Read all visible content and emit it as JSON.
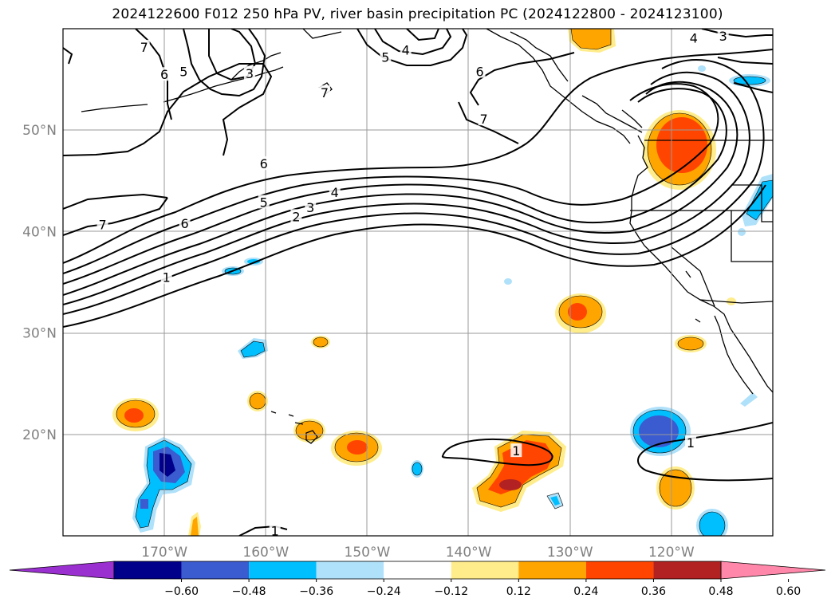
{
  "title": "2024122600 F012 250 hPa PV, river basin precipitation PC (2024122800 - 2024123100)",
  "map": {
    "lon_range": [
      -180,
      -110
    ],
    "lat_range": [
      10,
      60
    ],
    "lat_ticks": [
      {
        "value": 50,
        "label": "50°N"
      },
      {
        "value": 40,
        "label": "40°N"
      },
      {
        "value": 30,
        "label": "30°N"
      },
      {
        "value": 20,
        "label": "20°N"
      }
    ],
    "lon_ticks": [
      {
        "value": -170,
        "label": "170°W"
      },
      {
        "value": -160,
        "label": "160°W"
      },
      {
        "value": -150,
        "label": "150°W"
      },
      {
        "value": -140,
        "label": "140°W"
      },
      {
        "value": -130,
        "label": "130°W"
      },
      {
        "value": -120,
        "label": "120°W"
      }
    ],
    "grid": true
  },
  "contour_labels": [
    {
      "text": "7",
      "lon": -172,
      "lat": 58.2
    },
    {
      "text": "6",
      "lon": -170,
      "lat": 55.5
    },
    {
      "text": "5",
      "lon": -168.1,
      "lat": 55.8
    },
    {
      "text": "3",
      "lon": -161.6,
      "lat": 55.6
    },
    {
      "text": "5",
      "lon": -148.2,
      "lat": 57.2
    },
    {
      "text": "4",
      "lon": -146.2,
      "lat": 57.9
    },
    {
      "text": "6",
      "lon": -138.9,
      "lat": 55.8
    },
    {
      "text": "7",
      "lon": -154.2,
      "lat": 53.7
    },
    {
      "text": "7",
      "lon": -138.5,
      "lat": 51.1
    },
    {
      "text": "4",
      "lon": -117.8,
      "lat": 59.1
    },
    {
      "text": "3",
      "lon": -114.9,
      "lat": 59.3
    },
    {
      "text": "6",
      "lon": -160.2,
      "lat": 46.7
    },
    {
      "text": "5",
      "lon": -160.2,
      "lat": 42.9
    },
    {
      "text": "4",
      "lon": -153.2,
      "lat": 43.9
    },
    {
      "text": "3",
      "lon": -155.6,
      "lat": 42.4
    },
    {
      "text": "2",
      "lon": -157.0,
      "lat": 41.5
    },
    {
      "text": "6",
      "lon": -168.0,
      "lat": 40.8
    },
    {
      "text": "7",
      "lon": -176.1,
      "lat": 40.7
    },
    {
      "text": "1",
      "lon": -169.8,
      "lat": 35.5
    },
    {
      "text": "1",
      "lon": -135.3,
      "lat": 18.4
    },
    {
      "text": "1",
      "lon": -118.1,
      "lat": 19.2
    },
    {
      "text": "1",
      "lon": -159.1,
      "lat": 10.5
    }
  ],
  "colorbar": {
    "colors": [
      "#9b30d0",
      "#00008b",
      "#3b5bd0",
      "#00bfff",
      "#afe1fa",
      "#ffffff",
      "#ffec8b",
      "#ffa500",
      "#ff4500",
      "#b22222",
      "#ff88aa"
    ],
    "ticks": [
      "−0.60",
      "−0.48",
      "−0.36",
      "−0.24",
      "−0.12",
      "0.12",
      "0.24",
      "0.36",
      "0.48",
      "0.60"
    ]
  }
}
